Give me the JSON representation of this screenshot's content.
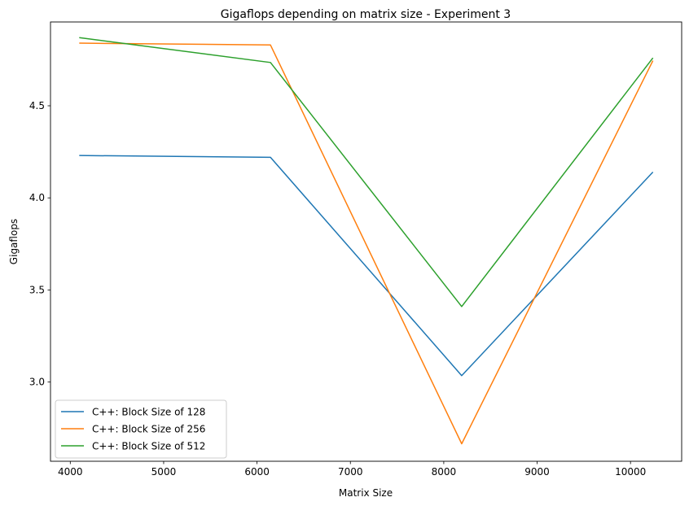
{
  "chart_data": {
    "type": "line",
    "title": "Gigaflops depending on matrix size - Experiment 3",
    "xlabel": "Matrix Size",
    "ylabel": "Gigaflops",
    "x": [
      4096,
      6144,
      8192,
      10240
    ],
    "xlim": [
      3788,
      10548
    ],
    "ylim": [
      2.57,
      4.955
    ],
    "xticks": [
      4000,
      5000,
      6000,
      7000,
      8000,
      9000,
      10000
    ],
    "yticks": [
      3.0,
      3.5,
      4.0,
      4.5
    ],
    "xtick_labels": [
      "4000",
      "5000",
      "6000",
      "7000",
      "8000",
      "9000",
      "10000"
    ],
    "ytick_labels": [
      "3.0",
      "3.5",
      "4.0",
      "4.5"
    ],
    "grid": false,
    "legend_position": "lower-left",
    "series": [
      {
        "name": "C++: Block Size of 128",
        "color": "#1f77b4",
        "values": [
          4.23,
          4.22,
          3.035,
          4.14
        ]
      },
      {
        "name": "C++: Block Size of 256",
        "color": "#ff7f0e",
        "values": [
          4.84,
          4.83,
          2.665,
          4.745
        ]
      },
      {
        "name": "C++: Block Size of 512",
        "color": "#2ca02c",
        "values": [
          4.87,
          4.735,
          3.41,
          4.76
        ]
      }
    ]
  }
}
